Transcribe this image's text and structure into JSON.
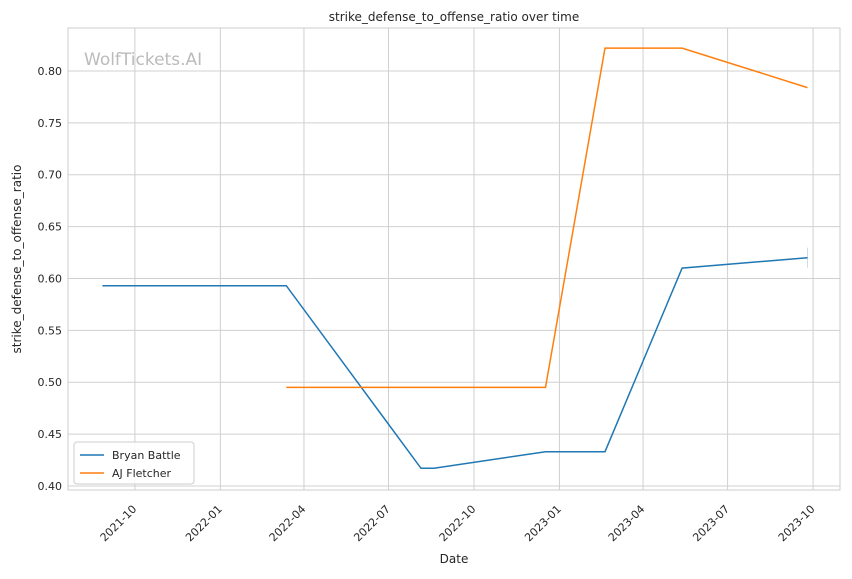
{
  "chart_data": {
    "type": "line",
    "title": "strike_defense_to_offense_ratio over time",
    "xlabel": "Date",
    "ylabel": "strike_defense_to_offense_ratio",
    "watermark": "WolfTickets.AI",
    "xlim": [
      "2021-07-21",
      "2023-10-30"
    ],
    "ylim": [
      0.3961,
      0.8414
    ],
    "grid": true,
    "legend_position": "bottom-left",
    "x_ticks": [
      "2021-10-01",
      "2022-01-01",
      "2022-04-01",
      "2022-07-01",
      "2022-10-01",
      "2023-01-01",
      "2023-04-01",
      "2023-07-01",
      "2023-10-01"
    ],
    "x_tick_labels": [
      "2021-10",
      "2022-01",
      "2022-04",
      "2022-07",
      "2022-10",
      "2023-01",
      "2023-04",
      "2023-07",
      "2023-10"
    ],
    "y_ticks": [
      0.4,
      0.45,
      0.5,
      0.55,
      0.6,
      0.65,
      0.7,
      0.75,
      0.8
    ],
    "y_tick_labels": [
      "0.40",
      "0.45",
      "0.50",
      "0.55",
      "0.60",
      "0.65",
      "0.70",
      "0.75",
      "0.80"
    ],
    "series": [
      {
        "name": "Bryan Battle",
        "color": "#1f77b4",
        "x": [
          "2021-08-27",
          "2022-03-13",
          "2022-08-05",
          "2022-08-19",
          "2022-12-17",
          "2023-02-19",
          "2023-05-13",
          "2023-09-25"
        ],
        "y": [
          0.593,
          0.593,
          0.417,
          0.417,
          0.433,
          0.433,
          0.61,
          0.62
        ]
      },
      {
        "name": "AJ Fletcher",
        "color": "#ff7f0e",
        "x": [
          "2022-03-13",
          "2022-12-17",
          "2023-02-19",
          "2023-05-13",
          "2023-09-25"
        ],
        "y": [
          0.495,
          0.495,
          0.822,
          0.822,
          0.784
        ]
      }
    ]
  }
}
